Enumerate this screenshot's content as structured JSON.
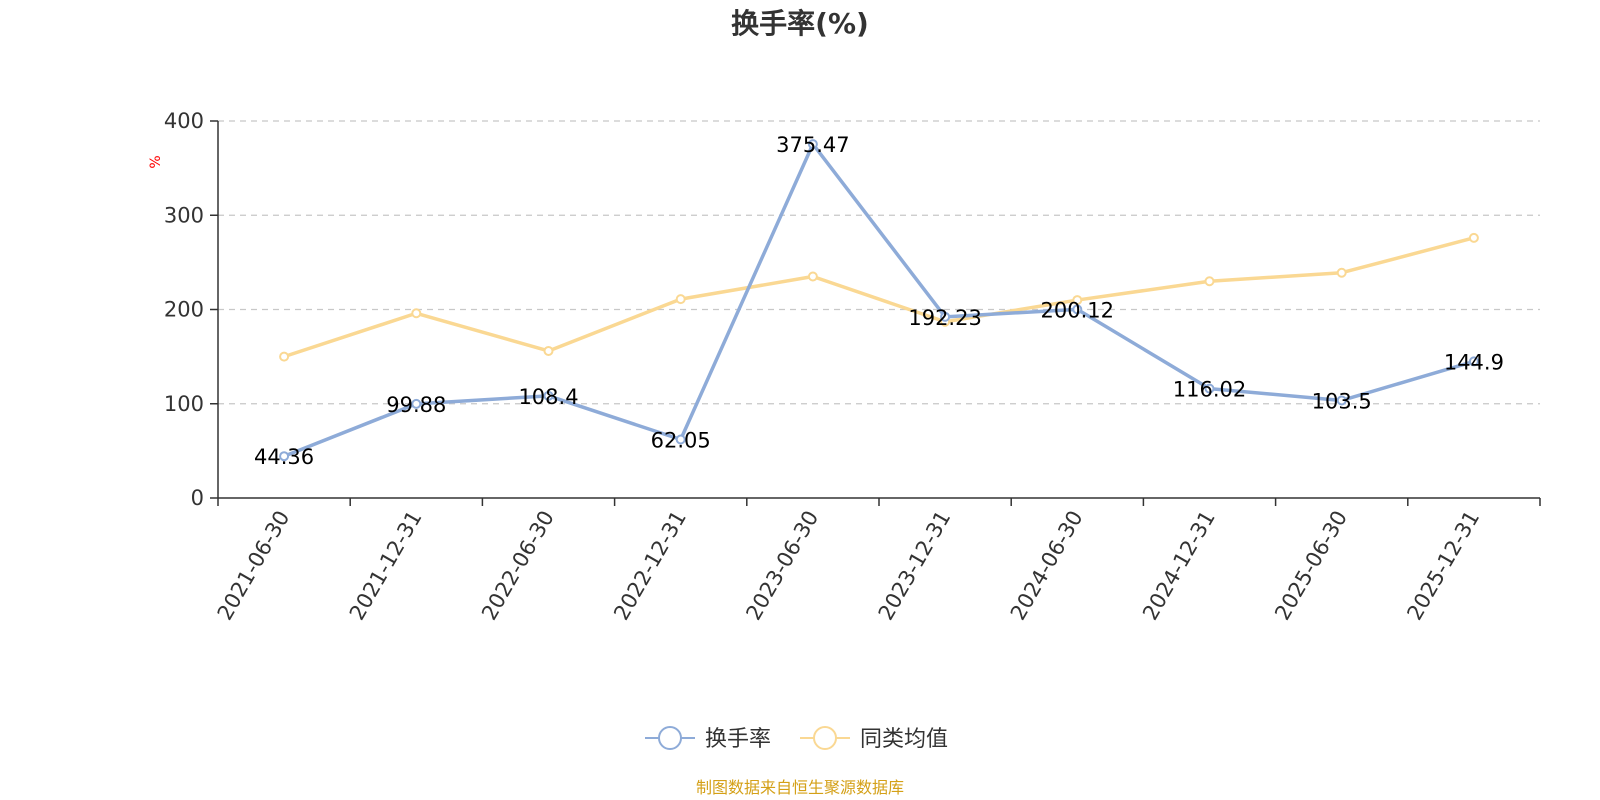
{
  "chart_data": {
    "type": "line",
    "title": "换手率(%)",
    "ylabel": "%",
    "xlabel": "",
    "ylim": [
      0,
      400
    ],
    "yticks": [
      0,
      100,
      200,
      300,
      400
    ],
    "grid": true,
    "legend_position": "bottom-center",
    "categories": [
      "2021-06-30",
      "2021-12-31",
      "2022-06-30",
      "2022-12-31",
      "2023-06-30",
      "2023-12-31",
      "2024-06-30",
      "2024-12-31",
      "2025-06-30",
      "2025-12-31"
    ],
    "series": [
      {
        "name": "换手率",
        "color": "#8eabd8",
        "values": [
          44.36,
          99.88,
          108.4,
          62.05,
          375.47,
          192.23,
          200.12,
          116.02,
          103.5,
          144.9
        ],
        "labels": [
          "44.36",
          "99.88",
          "108.4",
          "62.05",
          "375.47",
          "192.23",
          "200.12",
          "116.02",
          "103.5",
          "144.9"
        ]
      },
      {
        "name": "同类均值",
        "color": "#fad893",
        "values": [
          150,
          196,
          156,
          211,
          235,
          187,
          210,
          230,
          239,
          276
        ]
      }
    ]
  },
  "footer": {
    "source_text": "制图数据来自恒生聚源数据库",
    "source_color": "#d4a017"
  }
}
